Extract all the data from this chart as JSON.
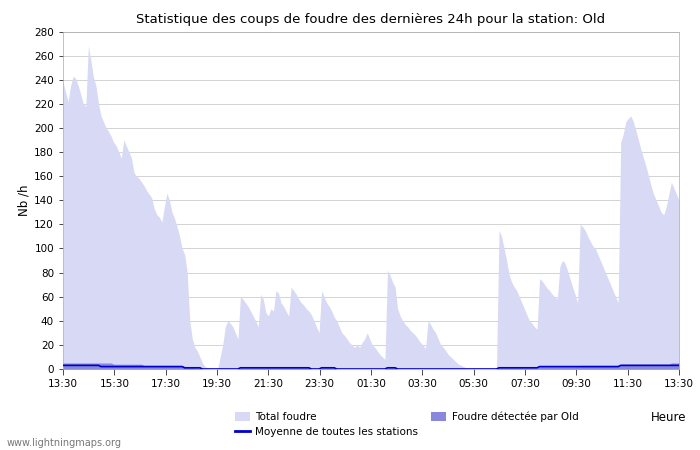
{
  "title": "Statistique des coups de foudre des dernières 24h pour la station: Old",
  "ylabel": "Nb /h",
  "xlabel": "Heure",
  "watermark": "www.lightningmaps.org",
  "ylim": [
    0,
    280
  ],
  "yticks": [
    0,
    20,
    40,
    60,
    80,
    100,
    120,
    140,
    160,
    180,
    200,
    220,
    240,
    260,
    280
  ],
  "xtick_labels": [
    "13:30",
    "15:30",
    "17:30",
    "19:30",
    "21:30",
    "23:30",
    "01:30",
    "03:30",
    "05:30",
    "07:30",
    "09:30",
    "11:30",
    "13:30"
  ],
  "color_total": "#d8daf5",
  "color_detected": "#8888dd",
  "color_moyenne": "#0000cc",
  "color_bg": "#ffffff",
  "color_grid": "#cccccc",
  "color_spine": "#aaaaaa",
  "total_foudre": [
    238,
    230,
    222,
    235,
    243,
    241,
    235,
    228,
    220,
    218,
    268,
    256,
    242,
    235,
    220,
    210,
    205,
    200,
    197,
    193,
    188,
    185,
    180,
    175,
    190,
    185,
    180,
    175,
    163,
    160,
    158,
    155,
    152,
    148,
    145,
    142,
    133,
    128,
    126,
    122,
    135,
    146,
    140,
    130,
    125,
    118,
    110,
    100,
    95,
    80,
    40,
    25,
    18,
    15,
    10,
    5,
    2,
    1,
    0,
    0,
    0,
    0,
    10,
    20,
    35,
    40,
    38,
    35,
    30,
    25,
    60,
    58,
    55,
    52,
    48,
    44,
    40,
    35,
    62,
    58,
    47,
    44,
    50,
    48,
    65,
    63,
    55,
    52,
    48,
    44,
    68,
    65,
    62,
    58,
    55,
    53,
    50,
    48,
    45,
    40,
    35,
    30,
    65,
    60,
    55,
    52,
    48,
    43,
    40,
    35,
    30,
    28,
    25,
    22,
    20,
    18,
    20,
    18,
    22,
    25,
    30,
    25,
    20,
    18,
    15,
    12,
    10,
    8,
    82,
    78,
    72,
    68,
    50,
    44,
    40,
    37,
    35,
    32,
    30,
    28,
    25,
    22,
    20,
    17,
    40,
    37,
    33,
    30,
    25,
    20,
    18,
    15,
    12,
    10,
    8,
    6,
    4,
    3,
    2,
    1,
    0,
    0,
    0,
    0,
    0,
    0,
    0,
    0,
    0,
    0,
    0,
    0,
    115,
    110,
    100,
    90,
    78,
    72,
    68,
    65,
    60,
    55,
    50,
    45,
    40,
    38,
    35,
    33,
    75,
    73,
    70,
    67,
    65,
    62,
    60,
    58,
    85,
    90,
    88,
    82,
    75,
    68,
    62,
    55,
    120,
    118,
    115,
    110,
    106,
    102,
    100,
    95,
    90,
    85,
    80,
    75,
    70,
    65,
    60,
    55,
    188,
    195,
    205,
    208,
    210,
    205,
    198,
    190,
    182,
    175,
    168,
    160,
    152,
    145,
    140,
    135,
    130,
    128,
    135,
    145,
    155,
    150,
    145,
    140
  ],
  "detected_foudre": [
    5,
    5,
    5,
    5,
    5,
    5,
    5,
    5,
    5,
    5,
    5,
    5,
    5,
    5,
    5,
    5,
    5,
    5,
    5,
    5,
    4,
    4,
    4,
    4,
    4,
    4,
    4,
    4,
    4,
    4,
    4,
    4,
    3,
    3,
    3,
    3,
    3,
    3,
    3,
    3,
    3,
    3,
    3,
    3,
    3,
    3,
    3,
    3,
    2,
    2,
    2,
    2,
    1,
    1,
    1,
    0,
    0,
    0,
    0,
    0,
    0,
    0,
    0,
    0,
    0,
    0,
    0,
    0,
    0,
    0,
    1,
    1,
    1,
    1,
    1,
    1,
    1,
    1,
    1,
    1,
    1,
    1,
    1,
    1,
    1,
    1,
    1,
    1,
    1,
    1,
    1,
    1,
    1,
    1,
    1,
    1,
    1,
    1,
    0,
    0,
    0,
    0,
    1,
    1,
    1,
    1,
    1,
    1,
    0,
    0,
    0,
    0,
    0,
    0,
    0,
    0,
    0,
    0,
    0,
    0,
    0,
    0,
    0,
    0,
    0,
    0,
    0,
    0,
    1,
    1,
    1,
    1,
    0,
    0,
    0,
    0,
    0,
    0,
    0,
    0,
    0,
    0,
    0,
    0,
    0,
    0,
    0,
    0,
    0,
    0,
    0,
    0,
    0,
    0,
    0,
    0,
    0,
    0,
    0,
    0,
    0,
    0,
    0,
    0,
    0,
    0,
    0,
    0,
    0,
    0,
    0,
    0,
    1,
    1,
    1,
    1,
    1,
    1,
    1,
    1,
    1,
    1,
    1,
    1,
    1,
    1,
    1,
    1,
    2,
    2,
    2,
    2,
    2,
    2,
    2,
    2,
    2,
    2,
    2,
    2,
    2,
    2,
    2,
    2,
    3,
    3,
    3,
    3,
    3,
    3,
    3,
    3,
    3,
    3,
    3,
    3,
    3,
    3,
    3,
    3,
    4,
    4,
    4,
    4,
    4,
    4,
    4,
    4,
    4,
    4,
    4,
    4,
    4,
    4,
    4,
    4,
    4,
    4,
    4,
    4,
    5,
    5,
    5,
    5
  ],
  "moyenne": [
    3,
    3,
    3,
    3,
    3,
    3,
    3,
    3,
    3,
    3,
    3,
    3,
    3,
    3,
    3,
    2,
    2,
    2,
    2,
    2,
    2,
    2,
    2,
    2,
    2,
    2,
    2,
    2,
    2,
    2,
    2,
    2,
    2,
    2,
    2,
    2,
    2,
    2,
    2,
    2,
    2,
    2,
    2,
    2,
    2,
    2,
    2,
    2,
    1,
    1,
    1,
    1,
    1,
    1,
    1,
    0,
    0,
    0,
    0,
    0,
    0,
    0,
    0,
    0,
    0,
    0,
    0,
    0,
    0,
    0,
    1,
    1,
    1,
    1,
    1,
    1,
    1,
    1,
    1,
    1,
    1,
    1,
    1,
    1,
    1,
    1,
    1,
    1,
    1,
    1,
    1,
    1,
    1,
    1,
    1,
    1,
    1,
    1,
    0,
    0,
    0,
    0,
    1,
    1,
    1,
    1,
    1,
    1,
    0,
    0,
    0,
    0,
    0,
    0,
    0,
    0,
    0,
    0,
    0,
    0,
    0,
    0,
    0,
    0,
    0,
    0,
    0,
    0,
    1,
    1,
    1,
    1,
    0,
    0,
    0,
    0,
    0,
    0,
    0,
    0,
    0,
    0,
    0,
    0,
    0,
    0,
    0,
    0,
    0,
    0,
    0,
    0,
    0,
    0,
    0,
    0,
    0,
    0,
    0,
    0,
    0,
    0,
    0,
    0,
    0,
    0,
    0,
    0,
    0,
    0,
    0,
    0,
    1,
    1,
    1,
    1,
    1,
    1,
    1,
    1,
    1,
    1,
    1,
    1,
    1,
    1,
    1,
    1,
    2,
    2,
    2,
    2,
    2,
    2,
    2,
    2,
    2,
    2,
    2,
    2,
    2,
    2,
    2,
    2,
    2,
    2,
    2,
    2,
    2,
    2,
    2,
    2,
    2,
    2,
    2,
    2,
    2,
    2,
    2,
    2,
    3,
    3,
    3,
    3,
    3,
    3,
    3,
    3,
    3,
    3,
    3,
    3,
    3,
    3,
    3,
    3,
    3,
    3,
    3,
    3,
    3,
    3,
    3,
    3
  ]
}
